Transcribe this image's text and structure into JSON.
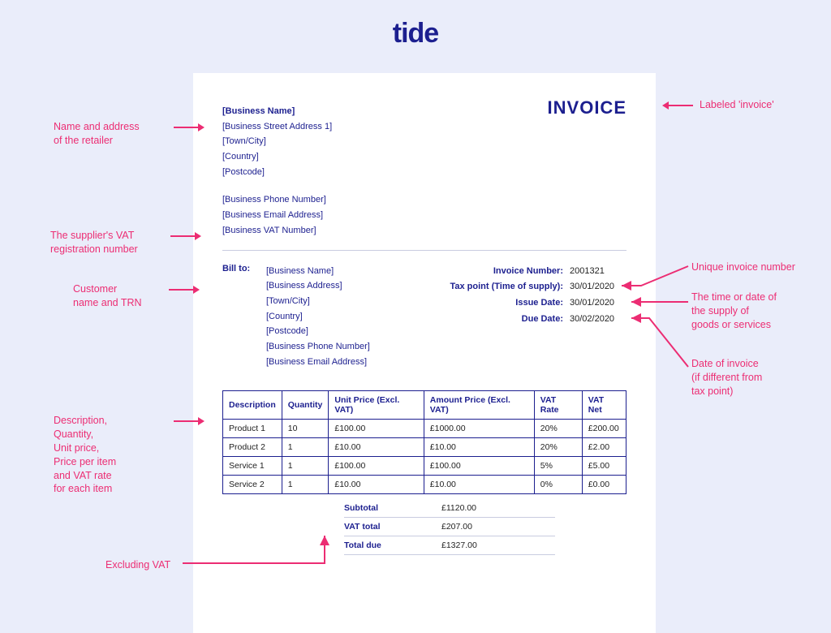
{
  "logo": "tide",
  "invoice_title": "INVOICE",
  "business": {
    "name": "[Business Name]",
    "addr1": "[Business Street Address 1]",
    "town": "[Town/City]",
    "country": "[Country]",
    "postcode": "[Postcode]",
    "phone": "[Business Phone Number]",
    "email": "[Business Email Address]",
    "vat": "[Business VAT Number]"
  },
  "billto_label": "Bill to:",
  "billto": {
    "name": "[Business Name]",
    "addr": "[Business Address]",
    "town": "[Town/City]",
    "country": "[Country]",
    "postcode": "[Postcode]",
    "phone": "[Business Phone Number]",
    "email": "[Business Email Address]"
  },
  "meta": {
    "invoice_no_label": "Invoice Number:",
    "invoice_no": "2001321",
    "tax_point_label": "Tax point (Time of supply):",
    "tax_point": "30/01/2020",
    "issue_label": "Issue Date:",
    "issue": "30/01/2020",
    "due_label": "Due Date:",
    "due": "30/02/2020"
  },
  "table": {
    "headers": {
      "desc": "Description",
      "qty": "Quantity",
      "unit": "Unit Price (Excl. VAT)",
      "amount": "Amount Price (Excl. VAT)",
      "rate": "VAT Rate",
      "net": "VAT Net"
    },
    "rows": [
      {
        "desc": "Product 1",
        "qty": "10",
        "unit": "£100.00",
        "amount": "£1000.00",
        "rate": "20%",
        "net": "£200.00"
      },
      {
        "desc": "Product 2",
        "qty": "1",
        "unit": "£10.00",
        "amount": "£10.00",
        "rate": "20%",
        "net": "£2.00"
      },
      {
        "desc": "Service 1",
        "qty": "1",
        "unit": "£100.00",
        "amount": "£100.00",
        "rate": "5%",
        "net": "£5.00"
      },
      {
        "desc": "Service 2",
        "qty": "1",
        "unit": "£10.00",
        "amount": "£10.00",
        "rate": "0%",
        "net": "£0.00"
      }
    ]
  },
  "totals": {
    "subtotal_label": "Subtotal",
    "subtotal": "£1120.00",
    "vat_label": "VAT total",
    "vat": "£207.00",
    "due_label": "Total due",
    "due": "£1327.00"
  },
  "annot": {
    "a1": "Name and address\nof the retailer",
    "a2": "The supplier's VAT\nregistration number",
    "a3": "Customer\nname and TRN",
    "a4": "Description,\nQuantity,\nUnit price,\nPrice per item\nand VAT rate\nfor each item",
    "a5": "Excluding VAT",
    "b1": "Labeled 'invoice'",
    "b2": "Unique invoice number",
    "b3": "The time or date of\nthe supply of\ngoods or services",
    "b4": "Date of invoice\n(if different from\ntax point)"
  },
  "colors": {
    "bg": "#eaedfa",
    "brand": "#1c1f8f",
    "accent": "#ec2d73",
    "paper": "#ffffff",
    "rule": "#c9cce0"
  }
}
